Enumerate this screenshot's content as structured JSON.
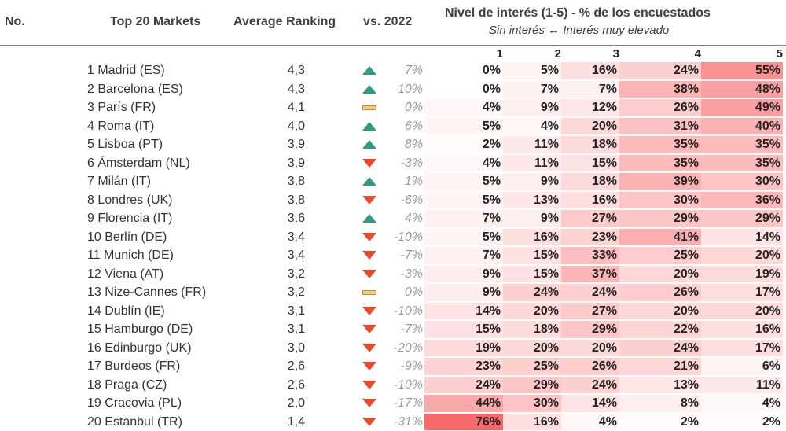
{
  "chart_data": {
    "type": "table",
    "headers": {
      "no": "No.",
      "market": "Top 20 Markets",
      "ranking": "Average Ranking",
      "vs": "vs. 2022",
      "interest_title": "Nivel de interés (1-5) - % de los encuestados",
      "interest_subtitle": "Sin interés ↔ Interés muy elevado",
      "levels": [
        "1",
        "2",
        "3",
        "4",
        "5"
      ]
    },
    "rows": [
      {
        "market": "1 Madrid (ES)",
        "ranking": "4,3",
        "trend": "up",
        "vs": "7%",
        "pct": [
          0,
          5,
          16,
          24,
          55
        ]
      },
      {
        "market": "2 Barcelona (ES)",
        "ranking": "4,3",
        "trend": "up",
        "vs": "10%",
        "pct": [
          0,
          7,
          7,
          38,
          48
        ]
      },
      {
        "market": "3 París (FR)",
        "ranking": "4,1",
        "trend": "flat",
        "vs": "0%",
        "pct": [
          4,
          9,
          12,
          26,
          49
        ]
      },
      {
        "market": "4 Roma (IT)",
        "ranking": "4,0",
        "trend": "up",
        "vs": "6%",
        "pct": [
          5,
          4,
          20,
          31,
          40
        ]
      },
      {
        "market": "5 Lisboa (PT)",
        "ranking": "3,9",
        "trend": "up",
        "vs": "8%",
        "pct": [
          2,
          11,
          18,
          35,
          35
        ]
      },
      {
        "market": "6 Ámsterdam (NL)",
        "ranking": "3,9",
        "trend": "down",
        "vs": "-3%",
        "pct": [
          4,
          11,
          15,
          35,
          35
        ]
      },
      {
        "market": "7 Milán (IT)",
        "ranking": "3,8",
        "trend": "up",
        "vs": "1%",
        "pct": [
          5,
          9,
          18,
          39,
          30
        ]
      },
      {
        "market": "8 Londres (UK)",
        "ranking": "3,8",
        "trend": "down",
        "vs": "-6%",
        "pct": [
          5,
          13,
          16,
          30,
          36
        ]
      },
      {
        "market": "9 Florencia (IT)",
        "ranking": "3,6",
        "trend": "up",
        "vs": "4%",
        "pct": [
          7,
          9,
          27,
          29,
          29
        ]
      },
      {
        "market": "10 Berlín (DE)",
        "ranking": "3,4",
        "trend": "down",
        "vs": "-10%",
        "pct": [
          5,
          16,
          23,
          41,
          14
        ]
      },
      {
        "market": "11 Munich (DE)",
        "ranking": "3,4",
        "trend": "down",
        "vs": "-7%",
        "pct": [
          7,
          15,
          33,
          25,
          20
        ]
      },
      {
        "market": "12 Viena (AT)",
        "ranking": "3,2",
        "trend": "down",
        "vs": "-3%",
        "pct": [
          9,
          15,
          37,
          20,
          19
        ]
      },
      {
        "market": "13 Nize-Cannes (FR)",
        "ranking": "3,2",
        "trend": "flat",
        "vs": "0%",
        "pct": [
          9,
          24,
          24,
          26,
          17
        ]
      },
      {
        "market": "14 Dublín (IE)",
        "ranking": "3,1",
        "trend": "down",
        "vs": "-10%",
        "pct": [
          14,
          20,
          27,
          20,
          20
        ]
      },
      {
        "market": "15 Hamburgo (DE)",
        "ranking": "3,1",
        "trend": "down",
        "vs": "-7%",
        "pct": [
          15,
          18,
          29,
          22,
          16
        ]
      },
      {
        "market": "16 Edinburgo (UK)",
        "ranking": "3,0",
        "trend": "down",
        "vs": "-20%",
        "pct": [
          19,
          20,
          20,
          24,
          17
        ]
      },
      {
        "market": "17 Burdeos (FR)",
        "ranking": "2,6",
        "trend": "down",
        "vs": "-9%",
        "pct": [
          23,
          25,
          26,
          21,
          6
        ]
      },
      {
        "market": "18 Praga (CZ)",
        "ranking": "2,6",
        "trend": "down",
        "vs": "-10%",
        "pct": [
          24,
          29,
          24,
          13,
          11
        ]
      },
      {
        "market": "19 Cracovia (PL)",
        "ranking": "2,0",
        "trend": "down",
        "vs": "-17%",
        "pct": [
          44,
          30,
          14,
          8,
          4
        ]
      },
      {
        "market": "20 Estanbul (TR)",
        "ranking": "1,4",
        "trend": "down",
        "vs": "-31%",
        "pct": [
          76,
          16,
          4,
          2,
          2
        ]
      }
    ],
    "colors": {
      "heat_low": "#ffffff",
      "heat_high": "#f8696b",
      "up": "#2e9b86",
      "down": "#e84a2a",
      "flat": "#f6c77d"
    }
  }
}
